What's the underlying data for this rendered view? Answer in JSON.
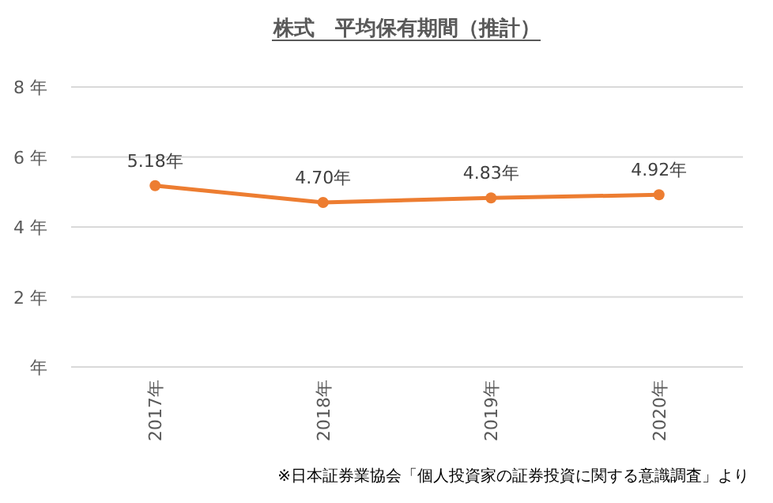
{
  "chart_data": {
    "type": "line",
    "title": "株式　平均保有期間（推計）",
    "categories": [
      "2017年",
      "2018年",
      "2019年",
      "2020年"
    ],
    "series": [
      {
        "color": "#ed7d31",
        "values": [
          5.18,
          4.7,
          4.83,
          4.92
        ],
        "value_labels": [
          "5.18年",
          "4.70年",
          "4.83年",
          "4.92年"
        ]
      }
    ],
    "ylim": [
      0,
      8
    ],
    "yticks": [
      {
        "value": 0,
        "label": "年"
      },
      {
        "value": 2,
        "label": "2 年"
      },
      {
        "value": 4,
        "label": "4 年"
      },
      {
        "value": 6,
        "label": "6 年"
      },
      {
        "value": 8,
        "label": "8 年"
      }
    ],
    "grid": "y",
    "marker": "circle",
    "line_style": "solid",
    "annotations": [
      "※日本証券業協会「個人投資家の証券投資に関する意識調査」より"
    ]
  }
}
